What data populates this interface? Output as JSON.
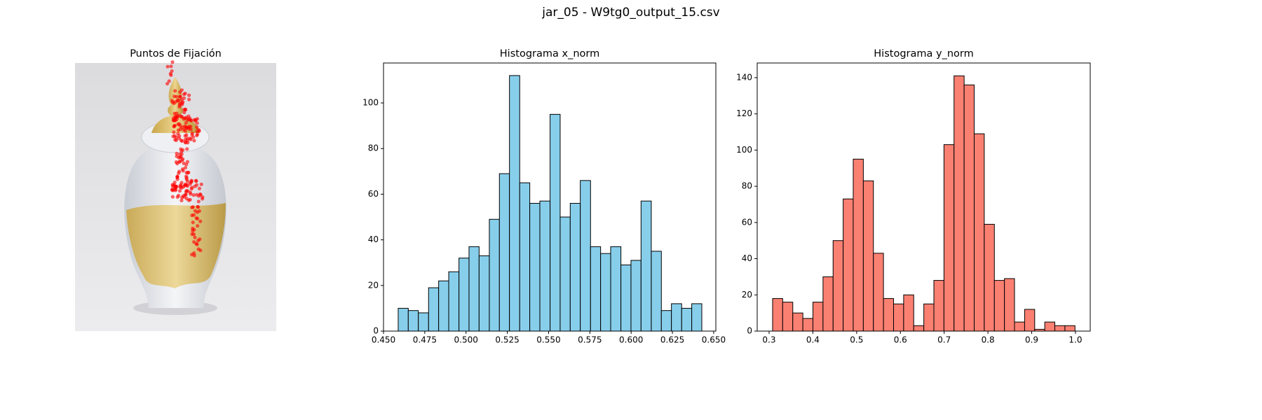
{
  "title": "jar_05 - W9tg0_output_15.csv",
  "chart_data": [
    {
      "type": "image",
      "title": "Puntos de Fijación"
    },
    {
      "type": "histogram",
      "title": "Histograma x_norm",
      "color": "#87ceeb",
      "edgecolor": "#000000",
      "bins": [
        0.4589,
        0.465,
        0.4711,
        0.4773,
        0.4834,
        0.4895,
        0.4957,
        0.5018,
        0.5079,
        0.5141,
        0.5202,
        0.5263,
        0.5325,
        0.5386,
        0.5447,
        0.5509,
        0.557,
        0.5631,
        0.5692,
        0.5754,
        0.5815,
        0.5876,
        0.5938,
        0.5999,
        0.606,
        0.6122,
        0.6183,
        0.6244,
        0.6306,
        0.6367,
        0.6428
      ],
      "counts": [
        10,
        9,
        8,
        19,
        22,
        26,
        32,
        37,
        33,
        49,
        69,
        112,
        65,
        56,
        57,
        95,
        50,
        56,
        66,
        37,
        34,
        37,
        29,
        31,
        57,
        35,
        9,
        12,
        10,
        12
      ],
      "xlim": [
        0.45,
        0.6513
      ],
      "ylim": [
        0,
        117.5
      ],
      "xticks": [
        {
          "value": 0.45,
          "label": "0.450"
        },
        {
          "value": 0.475,
          "label": "0.475"
        },
        {
          "value": 0.5,
          "label": "0.500"
        },
        {
          "value": 0.525,
          "label": "0.525"
        },
        {
          "value": 0.55,
          "label": "0.550"
        },
        {
          "value": 0.575,
          "label": "0.575"
        },
        {
          "value": 0.6,
          "label": "0.600"
        },
        {
          "value": 0.625,
          "label": "0.625"
        },
        {
          "value": 0.65,
          "label": "0.650"
        }
      ],
      "yticks": [
        0,
        20,
        40,
        60,
        80,
        100
      ]
    },
    {
      "type": "histogram",
      "title": "Histograma y_norm",
      "color": "#fa8072",
      "edgecolor": "#000000",
      "bins": [
        0.308,
        0.331,
        0.3541,
        0.3771,
        0.4001,
        0.4232,
        0.4462,
        0.4692,
        0.4922,
        0.5153,
        0.5383,
        0.5613,
        0.5844,
        0.6074,
        0.6304,
        0.6535,
        0.6765,
        0.6995,
        0.7225,
        0.7456,
        0.7686,
        0.7916,
        0.8147,
        0.8377,
        0.8607,
        0.8838,
        0.9068,
        0.9298,
        0.9528,
        0.9759,
        0.9989
      ],
      "counts": [
        18,
        16,
        10,
        7,
        16,
        30,
        50,
        73,
        95,
        83,
        43,
        18,
        15,
        20,
        3,
        15,
        28,
        103,
        141,
        136,
        109,
        59,
        28,
        29,
        5,
        12,
        1,
        5,
        3,
        3
      ],
      "xlim": [
        0.2728,
        1.0337
      ],
      "ylim": [
        0,
        148.1
      ],
      "xticks": [
        0.3,
        0.4,
        0.5,
        0.6,
        0.7,
        0.8,
        0.9,
        {
          "value": 1.0,
          "label": "1.0"
        }
      ],
      "yticks": [
        0,
        20,
        40,
        60,
        80,
        100,
        120,
        140
      ]
    }
  ]
}
